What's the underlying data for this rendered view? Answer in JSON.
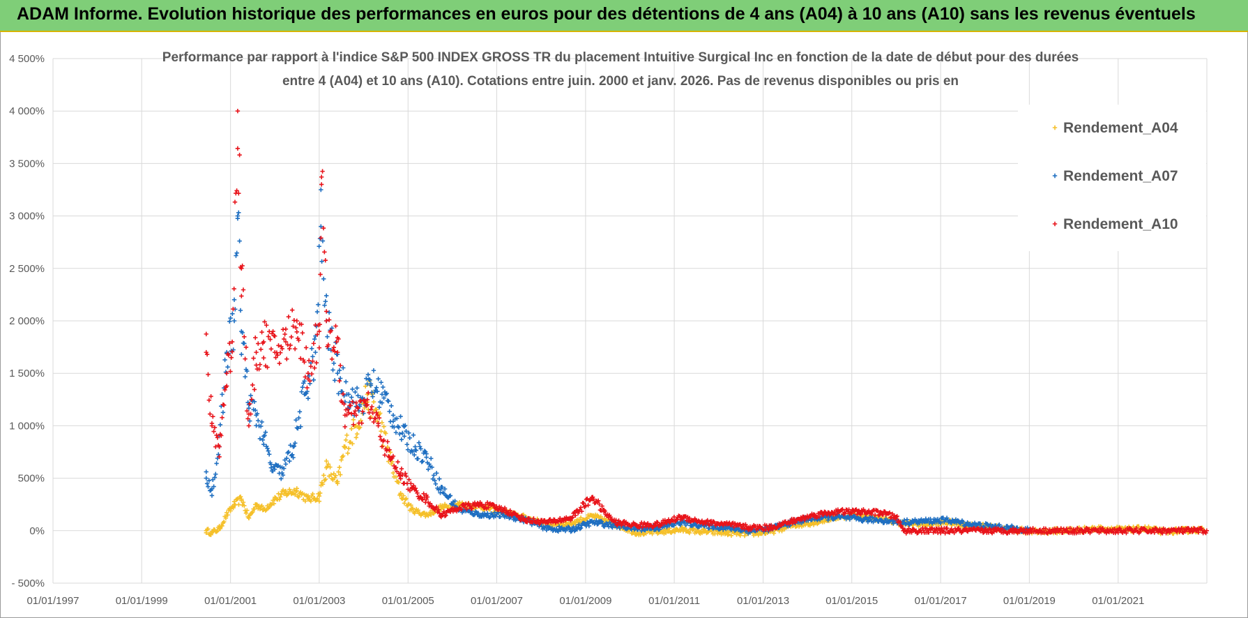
{
  "header": {
    "title": "ADAM Informe. Evolution historique des performances en euros pour des détentions de 4 ans (A04) à 10 ans (A10) sans les revenus éventuels"
  },
  "colors": {
    "banner": "#7fce78",
    "banner_border": "#d6b400",
    "A04": "#f5c02a",
    "A07": "#1f6fc1",
    "A10": "#e8141b",
    "grid": "#d9d9d9",
    "text": "#595959"
  },
  "chart_data": {
    "type": "scatter",
    "title_lines": [
      "Performance par rapport à l'indice S&P 500 INDEX GROSS TR  du placement Intuitive Surgical Inc en fonction de la date de début pour des durées",
      "entre 4 (A04) et 10 ans (A10). Cotations entre juin. 2000 et janv. 2026. Pas de revenus disponibles ou pris en"
    ],
    "x_axis": {
      "type": "date",
      "range": [
        "1997-01-01",
        "2023-01-01"
      ],
      "tick_labels": [
        "01/01/1997",
        "01/01/1999",
        "01/01/2001",
        "01/01/2003",
        "01/01/2005",
        "01/01/2007",
        "01/01/2009",
        "01/01/2011",
        "01/01/2013",
        "01/01/2015",
        "01/01/2017",
        "01/01/2019",
        "01/01/2021"
      ]
    },
    "y_axis": {
      "range": [
        -500,
        4500
      ],
      "unit": "%",
      "tick_values": [
        -500,
        0,
        500,
        1000,
        1500,
        2000,
        2500,
        3000,
        3500,
        4000,
        4500
      ],
      "tick_labels": [
        "- 500%",
        "0%",
        "500%",
        "1 000%",
        "1 500%",
        "2 000%",
        "2 500%",
        "3 000%",
        "3 500%",
        "4 000%",
        "4 500%"
      ]
    },
    "grid": true,
    "marker": "+",
    "legend": {
      "placement": "top-right",
      "entries": [
        "Rendement_A04",
        "Rendement_A07",
        "Rendement_A10"
      ]
    },
    "series": [
      {
        "name": "Rendement_A04",
        "color": "#f5c02a",
        "points": [
          [
            "2000-06-15",
            0
          ],
          [
            "2000-08-01",
            -20
          ],
          [
            "2000-10-01",
            20
          ],
          [
            "2000-12-01",
            150
          ],
          [
            "2001-02-01",
            250
          ],
          [
            "2001-04-01",
            300
          ],
          [
            "2001-06-01",
            120
          ],
          [
            "2001-08-01",
            250
          ],
          [
            "2001-10-01",
            200
          ],
          [
            "2002-01-01",
            300
          ],
          [
            "2002-04-01",
            360
          ],
          [
            "2002-07-01",
            380
          ],
          [
            "2002-10-01",
            300
          ],
          [
            "2003-01-01",
            330
          ],
          [
            "2003-03-01",
            600
          ],
          [
            "2003-06-01",
            450
          ],
          [
            "2003-08-01",
            800
          ],
          [
            "2003-11-01",
            1000
          ],
          [
            "2004-02-01",
            1300
          ],
          [
            "2004-05-01",
            1100
          ],
          [
            "2004-08-01",
            700
          ],
          [
            "2004-11-01",
            350
          ],
          [
            "2005-02-01",
            200
          ],
          [
            "2005-06-01",
            150
          ],
          [
            "2005-10-01",
            220
          ],
          [
            "2006-03-01",
            250
          ],
          [
            "2006-09-01",
            230
          ],
          [
            "2007-03-01",
            180
          ],
          [
            "2007-09-01",
            120
          ],
          [
            "2008-03-01",
            60
          ],
          [
            "2008-09-01",
            70
          ],
          [
            "2009-03-01",
            140
          ],
          [
            "2009-09-01",
            60
          ],
          [
            "2010-03-01",
            -20
          ],
          [
            "2010-09-01",
            -10
          ],
          [
            "2011-03-01",
            10
          ],
          [
            "2011-09-01",
            -10
          ],
          [
            "2012-03-01",
            -20
          ],
          [
            "2012-09-01",
            -30
          ],
          [
            "2013-03-01",
            -10
          ],
          [
            "2013-09-01",
            50
          ],
          [
            "2014-03-01",
            80
          ],
          [
            "2014-09-01",
            130
          ],
          [
            "2015-03-01",
            140
          ],
          [
            "2015-09-01",
            110
          ],
          [
            "2016-03-01",
            70
          ],
          [
            "2016-09-01",
            60
          ],
          [
            "2017-03-01",
            80
          ],
          [
            "2017-09-01",
            50
          ],
          [
            "2018-03-01",
            30
          ],
          [
            "2018-09-01",
            10
          ],
          [
            "2019-03-01",
            -10
          ],
          [
            "2019-09-01",
            0
          ],
          [
            "2020-03-01",
            10
          ],
          [
            "2020-09-01",
            20
          ],
          [
            "2021-03-01",
            10
          ],
          [
            "2021-09-01",
            20
          ],
          [
            "2022-01-01",
            -10
          ],
          [
            "2022-06-01",
            0
          ],
          [
            "2022-12-01",
            10
          ]
        ]
      },
      {
        "name": "Rendement_A07",
        "color": "#1f6fc1",
        "points": [
          [
            "2000-06-15",
            500
          ],
          [
            "2000-08-01",
            400
          ],
          [
            "2000-10-01",
            800
          ],
          [
            "2000-12-01",
            1700
          ],
          [
            "2001-02-01",
            2000
          ],
          [
            "2001-03-01",
            3000
          ],
          [
            "2001-04-01",
            1900
          ],
          [
            "2001-06-01",
            1200
          ],
          [
            "2001-08-01",
            1100
          ],
          [
            "2001-10-01",
            900
          ],
          [
            "2001-12-01",
            600
          ],
          [
            "2002-03-01",
            550
          ],
          [
            "2002-06-01",
            800
          ],
          [
            "2002-09-01",
            1300
          ],
          [
            "2002-12-01",
            1700
          ],
          [
            "2003-01-15",
            2900
          ],
          [
            "2003-03-01",
            2000
          ],
          [
            "2003-06-01",
            1500
          ],
          [
            "2003-09-01",
            1300
          ],
          [
            "2003-12-01",
            1200
          ],
          [
            "2004-03-01",
            1400
          ],
          [
            "2004-06-01",
            1300
          ],
          [
            "2004-09-01",
            1100
          ],
          [
            "2004-12-01",
            900
          ],
          [
            "2005-03-01",
            800
          ],
          [
            "2005-06-01",
            700
          ],
          [
            "2005-10-01",
            400
          ],
          [
            "2006-03-01",
            200
          ],
          [
            "2006-09-01",
            150
          ],
          [
            "2007-03-01",
            150
          ],
          [
            "2007-09-01",
            100
          ],
          [
            "2008-03-01",
            20
          ],
          [
            "2008-09-01",
            10
          ],
          [
            "2009-03-01",
            80
          ],
          [
            "2009-09-01",
            50
          ],
          [
            "2010-03-01",
            20
          ],
          [
            "2010-09-01",
            30
          ],
          [
            "2011-03-01",
            80
          ],
          [
            "2011-09-01",
            50
          ],
          [
            "2012-03-01",
            30
          ],
          [
            "2012-09-01",
            0
          ],
          [
            "2013-03-01",
            20
          ],
          [
            "2013-09-01",
            80
          ],
          [
            "2014-03-01",
            120
          ],
          [
            "2014-09-01",
            130
          ],
          [
            "2015-03-01",
            110
          ],
          [
            "2015-09-01",
            100
          ],
          [
            "2016-03-01",
            80
          ],
          [
            "2016-09-01",
            90
          ],
          [
            "2017-03-01",
            100
          ],
          [
            "2017-09-01",
            60
          ],
          [
            "2018-03-01",
            40
          ],
          [
            "2018-09-01",
            20
          ],
          [
            "2019-01-01",
            10
          ]
        ]
      },
      {
        "name": "Rendement_A10",
        "color": "#e8141b",
        "points": [
          [
            "2000-06-15",
            1700
          ],
          [
            "2000-08-01",
            1000
          ],
          [
            "2000-10-01",
            800
          ],
          [
            "2000-12-01",
            1500
          ],
          [
            "2001-01-15",
            1800
          ],
          [
            "2001-03-01",
            4000
          ],
          [
            "2001-04-01",
            2500
          ],
          [
            "2001-06-01",
            1000
          ],
          [
            "2001-08-01",
            1700
          ],
          [
            "2001-10-01",
            1800
          ],
          [
            "2002-01-01",
            1700
          ],
          [
            "2002-04-01",
            1800
          ],
          [
            "2002-07-01",
            2000
          ],
          [
            "2002-10-01",
            1500
          ],
          [
            "2003-01-01",
            1900
          ],
          [
            "2003-01-20",
            3300
          ],
          [
            "2003-03-01",
            2000
          ],
          [
            "2003-06-01",
            1700
          ],
          [
            "2003-08-01",
            1100
          ],
          [
            "2003-11-01",
            1100
          ],
          [
            "2004-02-01",
            1200
          ],
          [
            "2004-05-01",
            1000
          ],
          [
            "2004-08-01",
            700
          ],
          [
            "2004-11-01",
            550
          ],
          [
            "2005-02-01",
            400
          ],
          [
            "2005-06-01",
            300
          ],
          [
            "2005-10-01",
            150
          ],
          [
            "2006-03-01",
            220
          ],
          [
            "2006-09-01",
            250
          ],
          [
            "2007-03-01",
            200
          ],
          [
            "2007-09-01",
            100
          ],
          [
            "2008-03-01",
            80
          ],
          [
            "2008-09-01",
            120
          ],
          [
            "2009-03-01",
            320
          ],
          [
            "2009-06-01",
            180
          ],
          [
            "2009-09-01",
            80
          ],
          [
            "2010-03-01",
            50
          ],
          [
            "2010-09-01",
            60
          ],
          [
            "2011-03-01",
            130
          ],
          [
            "2011-09-01",
            80
          ],
          [
            "2012-03-01",
            60
          ],
          [
            "2012-09-01",
            30
          ],
          [
            "2013-03-01",
            30
          ],
          [
            "2013-09-01",
            90
          ],
          [
            "2014-03-01",
            150
          ],
          [
            "2014-09-01",
            180
          ],
          [
            "2015-03-01",
            180
          ],
          [
            "2015-09-01",
            170
          ],
          [
            "2016-01-01",
            130
          ],
          [
            "2016-03-01",
            0
          ],
          [
            "2017-01-01",
            0
          ],
          [
            "2018-01-01",
            0
          ],
          [
            "2019-01-01",
            0
          ],
          [
            "2020-01-01",
            0
          ],
          [
            "2021-01-01",
            0
          ],
          [
            "2022-01-01",
            0
          ],
          [
            "2022-12-31",
            0
          ]
        ]
      }
    ]
  }
}
